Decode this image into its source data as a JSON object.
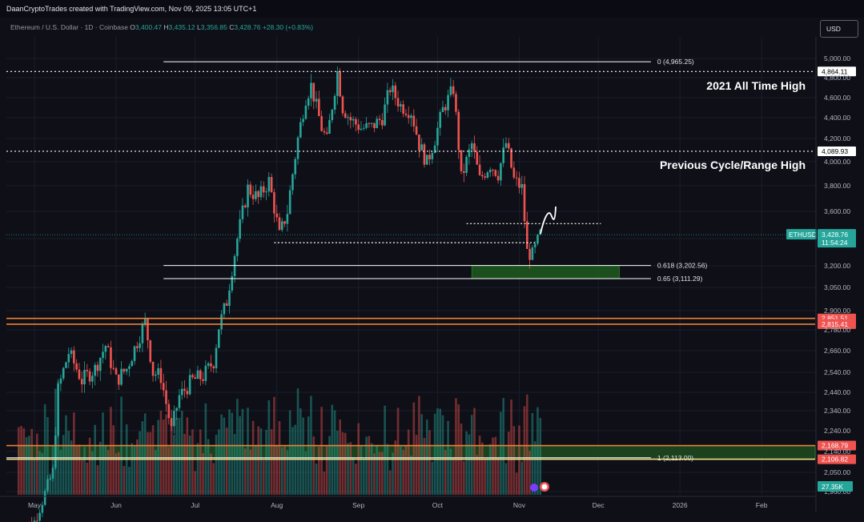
{
  "header": {
    "credit": "DaanCryptoTrades created with TradingView.com, Nov 09, 2025 13:05 UTC+1",
    "symbol": "Ethereum / U.S. Dollar · 1D · Coinbase",
    "ohlc": {
      "o_label": "O",
      "o": "3,400.47",
      "h_label": "H",
      "h": "3,435.12",
      "l_label": "L",
      "l": "3,356.85",
      "c_label": "C",
      "c": "3,428.76",
      "change": "+28.30 (+0.83%)"
    },
    "currency_button": "USD"
  },
  "chart_data": {
    "type": "candlestick",
    "symbol": "ETHUSD",
    "timeframe": "1D",
    "y_axis": {
      "ticks": [
        "5,000.00",
        "4,800.00",
        "4,600.00",
        "4,400.00",
        "4,200.00",
        "4,000.00",
        "3,800.00",
        "3,600.00",
        "3,400.00",
        "3,200.00",
        "3,050.00",
        "2,900.00",
        "2,780.00",
        "2,660.00",
        "2,540.00",
        "2,440.00",
        "2,340.00",
        "2,240.00",
        "2,140.00",
        "2,050.00",
        "1,960.00"
      ],
      "tick_values": [
        5000,
        4800,
        4600,
        4400,
        4200,
        4000,
        3800,
        3600,
        3400,
        3200,
        3050,
        2900,
        2780,
        2660,
        2540,
        2440,
        2340,
        2240,
        2140,
        2050,
        1960
      ]
    },
    "x_axis": {
      "labels": [
        "May",
        "Jun",
        "Jul",
        "Aug",
        "Sep",
        "Oct",
        "Nov",
        "Dec",
        "2026",
        "Feb"
      ],
      "label_dates": [
        "2025-05-01",
        "2025-06-01",
        "2025-07-01",
        "2025-08-01",
        "2025-09-01",
        "2025-10-01",
        "2025-11-01",
        "2025-12-01",
        "2026-01-01",
        "2026-02-01"
      ]
    },
    "date_range": [
      "2025-04-25",
      "2025-11-09"
    ],
    "price_path": [
      [
        "2025-04-25",
        1780
      ],
      [
        "2025-05-01",
        1820
      ],
      [
        "2025-05-08",
        2050
      ],
      [
        "2025-05-10",
        2450
      ],
      [
        "2025-05-14",
        2650
      ],
      [
        "2025-05-19",
        2500
      ],
      [
        "2025-05-24",
        2560
      ],
      [
        "2025-05-28",
        2690
      ],
      [
        "2025-06-01",
        2500
      ],
      [
        "2025-06-05",
        2560
      ],
      [
        "2025-06-10",
        2750
      ],
      [
        "2025-06-12",
        2830
      ],
      [
        "2025-06-15",
        2540
      ],
      [
        "2025-06-18",
        2520
      ],
      [
        "2025-06-22",
        2240
      ],
      [
        "2025-06-25",
        2420
      ],
      [
        "2025-06-30",
        2500
      ],
      [
        "2025-07-04",
        2520
      ],
      [
        "2025-07-08",
        2600
      ],
      [
        "2025-07-10",
        2800
      ],
      [
        "2025-07-13",
        2960
      ],
      [
        "2025-07-17",
        3400
      ],
      [
        "2025-07-21",
        3780
      ],
      [
        "2025-07-25",
        3700
      ],
      [
        "2025-07-29",
        3840
      ],
      [
        "2025-08-02",
        3420
      ],
      [
        "2025-08-05",
        3600
      ],
      [
        "2025-08-09",
        4200
      ],
      [
        "2025-08-12",
        4600
      ],
      [
        "2025-08-14",
        4720
      ],
      [
        "2025-08-18",
        4300
      ],
      [
        "2025-08-20",
        4180
      ],
      [
        "2025-08-24",
        4860
      ],
      [
        "2025-08-26",
        4500
      ],
      [
        "2025-08-29",
        4380
      ],
      [
        "2025-09-02",
        4300
      ],
      [
        "2025-09-06",
        4310
      ],
      [
        "2025-09-10",
        4400
      ],
      [
        "2025-09-13",
        4700
      ],
      [
        "2025-09-17",
        4520
      ],
      [
        "2025-09-21",
        4460
      ],
      [
        "2025-09-24",
        4150
      ],
      [
        "2025-09-27",
        3990
      ],
      [
        "2025-09-30",
        4200
      ],
      [
        "2025-10-03",
        4480
      ],
      [
        "2025-10-07",
        4690
      ],
      [
        "2025-10-10",
        3860
      ],
      [
        "2025-10-14",
        4150
      ],
      [
        "2025-10-17",
        3850
      ],
      [
        "2025-10-21",
        3980
      ],
      [
        "2025-10-24",
        3900
      ],
      [
        "2025-10-27",
        4160
      ],
      [
        "2025-10-30",
        3850
      ],
      [
        "2025-11-02",
        3780
      ],
      [
        "2025-11-04",
        3300
      ],
      [
        "2025-11-06",
        3280
      ],
      [
        "2025-11-09",
        3428.76
      ]
    ],
    "horizontal_levels": [
      {
        "price": 4864.11,
        "style": "dotted",
        "label": "4,864.11",
        "label_bg": "#ffffff",
        "label_fg": "#000000"
      },
      {
        "price": 4089.93,
        "style": "dotted",
        "label": "4,089.93",
        "label_bg": "#ffffff",
        "label_fg": "#000000"
      },
      {
        "price": 2851.51,
        "style": "solid",
        "color": "#e8823a",
        "label": "2,851.51",
        "label_bg": "#ef5350",
        "label_fg": "#ffffff"
      },
      {
        "price": 2815.41,
        "style": "solid",
        "color": "#e8823a",
        "label": "2,815.41",
        "label_bg": "#ef5350",
        "label_fg": "#ffffff"
      },
      {
        "price": 2168.79,
        "style": "solid",
        "color": "#e8823a",
        "label": "2,168.79",
        "label_bg": "#ef5350",
        "label_fg": "#ffffff"
      },
      {
        "price": 2106.82,
        "style": "solid",
        "color": "#f0e08a",
        "label": "2,106.82",
        "label_bg": "#ef5350",
        "label_fg": "#ffffff"
      }
    ],
    "fib_levels": [
      {
        "label": "0 (4,965.25)",
        "price": 4965.25
      },
      {
        "label": "0.618 (3,202.56)",
        "price": 3202.56
      },
      {
        "label": "0.65 (3,111.29)",
        "price": 3111.29
      },
      {
        "label": "1 (2,113.00)",
        "price": 2113.0
      }
    ],
    "dotted_segments": [
      {
        "price": 3510,
        "from": "2025-10-12",
        "to": "2025-12-02"
      },
      {
        "price": 3370,
        "from": "2025-07-31",
        "to": "2025-11-07"
      }
    ],
    "zones": [
      {
        "top": 3202.56,
        "bottom": 3111.29,
        "from": "2025-10-14",
        "to": "2025-12-09",
        "color": "#1f5a20"
      },
      {
        "top": 2168.79,
        "bottom": 2106.82,
        "from": "2025-04-25",
        "to": "2026-02-28",
        "color": "#1f4a1f"
      }
    ],
    "annotations": [
      {
        "text": "2021 All Time High"
      },
      {
        "text": "Previous Cycle/Range High"
      }
    ],
    "price_tag": {
      "symbol": "ETHUSD",
      "price": "3,428.76",
      "countdown": "11:54:24",
      "color": "#26a69a"
    },
    "volume_tag": {
      "value": "27.35K",
      "color": "#26a69a"
    },
    "colors": {
      "up": "#26a69a",
      "down": "#ef5350",
      "background": "#0e0f17",
      "grid": "#1b1e2b"
    }
  }
}
